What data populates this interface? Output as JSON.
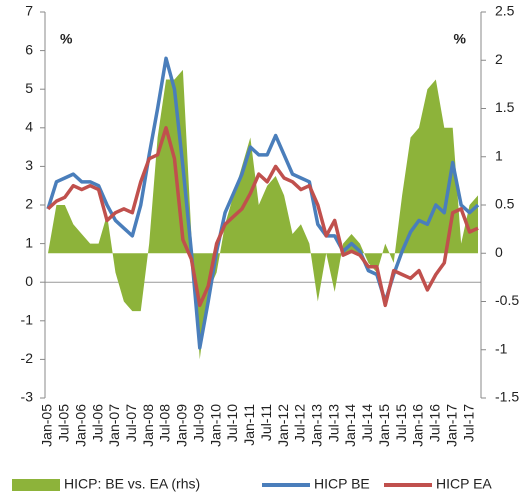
{
  "chart_data": {
    "type": "line",
    "y_label": "%",
    "y2_label": "%",
    "categories": [
      "Jan-05",
      null,
      "Jul-05",
      null,
      "Jan-06",
      null,
      "Jul-06",
      null,
      "Jan-07",
      null,
      "Jul-07",
      null,
      "Jan-08",
      null,
      "Jul-08",
      null,
      "Jan-09",
      null,
      "Jul-09",
      null,
      "Jan-10",
      null,
      "Jul-10",
      null,
      "Jan-11",
      null,
      "Jul-11",
      null,
      "Jan-12",
      null,
      "Jul-12",
      null,
      "Jan-13",
      null,
      "Jul-13",
      null,
      "Jan-14",
      null,
      "Jul-14",
      null,
      "Jan-15",
      null,
      "Jul-15",
      null,
      "Jan-16",
      null,
      "Jul-16",
      null,
      "Jan-17",
      null,
      "Jul-17",
      null
    ],
    "ylim": [
      -3,
      7
    ],
    "yticks": [
      -3,
      -2,
      -1,
      0,
      1,
      2,
      3,
      4,
      5,
      6,
      7
    ],
    "y2lim": [
      -1.5,
      2.5
    ],
    "y2ticks": [
      -1.5,
      -1,
      -0.5,
      0,
      0.5,
      1,
      1.5,
      2,
      2.5
    ],
    "series": [
      {
        "name": "HICP: BE vs. EA (rhs)",
        "type": "area",
        "axis": "y2",
        "color": "#8db33a",
        "values": [
          0,
          0.5,
          0.5,
          0.3,
          0.2,
          0.1,
          0.1,
          0.4,
          -0.2,
          -0.5,
          -0.6,
          -0.6,
          0.1,
          1.2,
          1.8,
          1.8,
          1.9,
          0.2,
          -1.1,
          -0.4,
          -0.2,
          0.3,
          0.6,
          0.9,
          1.2,
          0.5,
          0.7,
          0.8,
          0.6,
          0.2,
          0.3,
          0.1,
          -0.5,
          0,
          -0.4,
          0.1,
          0.2,
          0.1,
          -0.1,
          -0.2,
          0.1,
          -0.1,
          0.6,
          1.2,
          1.3,
          1.7,
          1.8,
          1.3,
          1.3,
          0.1,
          0.5,
          0.6
        ]
      },
      {
        "name": "HICP BE",
        "type": "line",
        "color": "#4a7ebb",
        "values": [
          1.9,
          2.6,
          2.7,
          2.8,
          2.6,
          2.6,
          2.5,
          2.0,
          1.6,
          1.4,
          1.2,
          2.0,
          3.3,
          4.5,
          5.8,
          5.0,
          3.0,
          0.8,
          -1.7,
          -0.5,
          0.8,
          1.8,
          2.3,
          2.8,
          3.5,
          3.3,
          3.3,
          3.8,
          3.3,
          2.8,
          2.7,
          2.6,
          1.5,
          1.2,
          1.2,
          0.8,
          1.0,
          0.8,
          0.3,
          0.2,
          -0.5,
          0.2,
          0.8,
          1.3,
          1.6,
          1.5,
          2.0,
          1.8,
          3.1,
          2.0,
          1.8,
          2.0
        ]
      },
      {
        "name": "HICP EA",
        "type": "line",
        "color": "#c0504d",
        "values": [
          1.9,
          2.1,
          2.2,
          2.5,
          2.4,
          2.5,
          2.4,
          1.6,
          1.8,
          1.9,
          1.8,
          2.6,
          3.2,
          3.3,
          4.0,
          3.2,
          1.1,
          0.6,
          -0.6,
          -0.1,
          1.0,
          1.5,
          1.7,
          1.9,
          2.3,
          2.8,
          2.6,
          3.0,
          2.7,
          2.6,
          2.4,
          2.5,
          2.0,
          1.2,
          1.6,
          0.7,
          0.8,
          0.7,
          0.4,
          0.4,
          -0.6,
          0.3,
          0.2,
          0.1,
          0.3,
          -0.2,
          0.2,
          0.5,
          1.8,
          1.9,
          1.3,
          1.4
        ]
      }
    ]
  }
}
